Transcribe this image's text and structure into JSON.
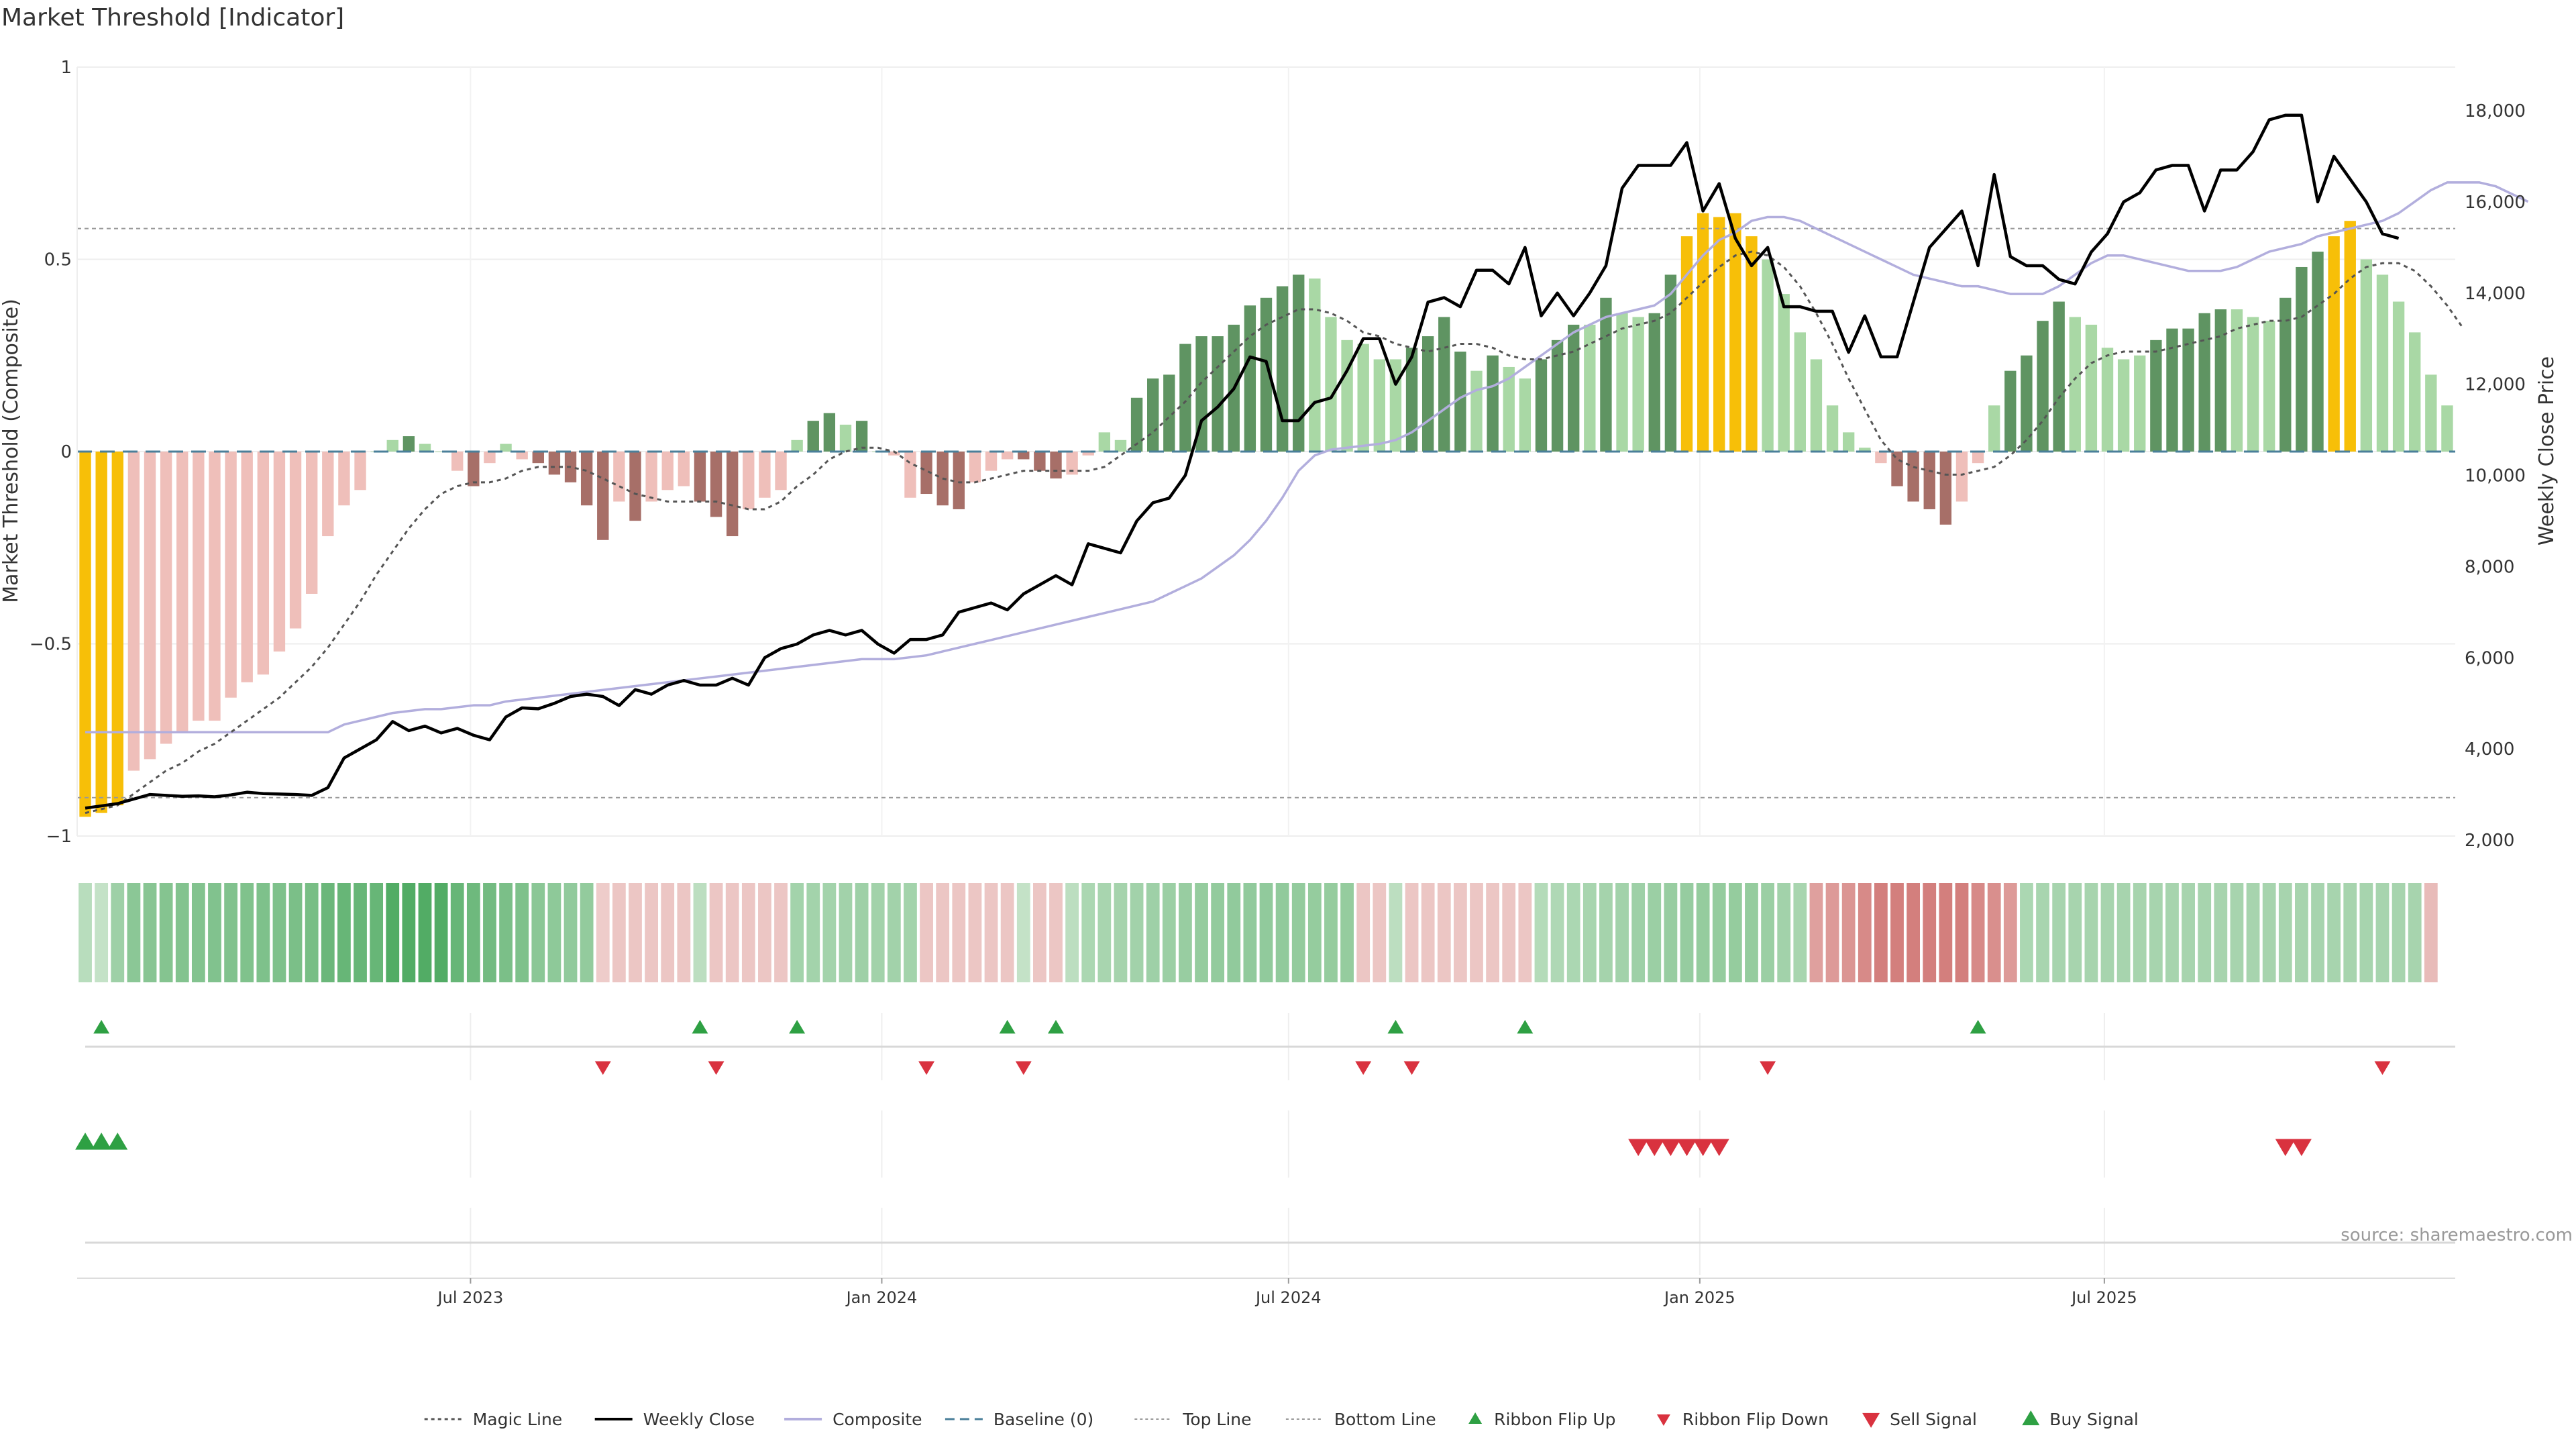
{
  "title": "Market Threshold [Indicator]",
  "source": "source: sharemaestro.com",
  "colors": {
    "gold": "#f7bf08",
    "dark_green": "#5f9462",
    "light_green": "#a9d8a5",
    "dark_red": "#a76f68",
    "light_red": "#efbfba",
    "price_line": "#000000",
    "composite_line": "#b2aedd",
    "magic_line": "#555555",
    "baseline": "#4a7f9a",
    "signal_up": "#2ea043",
    "signal_down": "#d9323f"
  },
  "chart_data": {
    "type": "bar",
    "title": "Market Threshold [Indicator]",
    "ylabel": "Market Threshold (Composite)",
    "y2label": "Weekly Close Price",
    "ylim": [
      -1,
      1
    ],
    "y2lim": [
      2000,
      18500
    ],
    "yticks": [
      -1,
      -0.5,
      0,
      0.5,
      1
    ],
    "yticklabels": [
      "−1",
      "−0.5",
      "0",
      "0.5",
      "1"
    ],
    "y2ticks": [
      2000,
      4000,
      6000,
      8000,
      10000,
      12000,
      14000,
      16000,
      18000
    ],
    "y2ticklabels": [
      "2,000",
      "4,000",
      "6,000",
      "8,000",
      "10,000",
      "12,000",
      "14,000",
      "16,000",
      "18,000"
    ],
    "xlim": [
      "2023-01-06",
      "2025-11-28"
    ],
    "xticks": [
      "2023-07-01",
      "2024-01-01",
      "2024-07-01",
      "2025-01-01",
      "2025-07-01"
    ],
    "xticklabels": [
      "Jul 2023",
      "Jan 2024",
      "Jul 2024",
      "Jan 2025",
      "Jul 2025"
    ],
    "top_line": 0.58,
    "bottom_line": -0.9,
    "grid": true,
    "legend_position": "bottom-center",
    "legend": [
      "Magic Line",
      "Weekly Close",
      "Composite",
      "Baseline (0)",
      "Top Line",
      "Bottom Line",
      "Ribbon Flip Up",
      "Ribbon Flip Down",
      "Sell Signal",
      "Buy Signal"
    ],
    "start_date": "2023-01-06",
    "bars": [
      [
        -0.95,
        "g"
      ],
      [
        -0.94,
        "g"
      ],
      [
        -0.92,
        "g"
      ],
      [
        -0.83,
        "lr"
      ],
      [
        -0.8,
        "lr"
      ],
      [
        -0.76,
        "lr"
      ],
      [
        -0.73,
        "lr"
      ],
      [
        -0.7,
        "lr"
      ],
      [
        -0.7,
        "lr"
      ],
      [
        -0.64,
        "lr"
      ],
      [
        -0.6,
        "lr"
      ],
      [
        -0.58,
        "lr"
      ],
      [
        -0.52,
        "lr"
      ],
      [
        -0.46,
        "lr"
      ],
      [
        -0.37,
        "lr"
      ],
      [
        -0.22,
        "lr"
      ],
      [
        -0.14,
        "lr"
      ],
      [
        -0.1,
        "lr"
      ],
      [
        0.0,
        "lg"
      ],
      [
        0.03,
        "lg"
      ],
      [
        0.04,
        "dg"
      ],
      [
        0.02,
        "lg"
      ],
      [
        0.0,
        "lg"
      ],
      [
        -0.05,
        "lr"
      ],
      [
        -0.09,
        "dr"
      ],
      [
        -0.03,
        "lr"
      ],
      [
        0.02,
        "lg"
      ],
      [
        -0.02,
        "lr"
      ],
      [
        -0.03,
        "dr"
      ],
      [
        -0.06,
        "dr"
      ],
      [
        -0.08,
        "dr"
      ],
      [
        -0.14,
        "dr"
      ],
      [
        -0.23,
        "dr"
      ],
      [
        -0.13,
        "lr"
      ],
      [
        -0.18,
        "dr"
      ],
      [
        -0.13,
        "lr"
      ],
      [
        -0.1,
        "lr"
      ],
      [
        -0.09,
        "lr"
      ],
      [
        -0.13,
        "dr"
      ],
      [
        -0.17,
        "dr"
      ],
      [
        -0.22,
        "dr"
      ],
      [
        -0.15,
        "lr"
      ],
      [
        -0.12,
        "lr"
      ],
      [
        -0.1,
        "lr"
      ],
      [
        0.03,
        "lg"
      ],
      [
        0.08,
        "dg"
      ],
      [
        0.1,
        "dg"
      ],
      [
        0.07,
        "lg"
      ],
      [
        0.08,
        "dg"
      ],
      [
        0.0,
        "lg"
      ],
      [
        -0.01,
        "lr"
      ],
      [
        -0.12,
        "lr"
      ],
      [
        -0.11,
        "dr"
      ],
      [
        -0.14,
        "dr"
      ],
      [
        -0.15,
        "dr"
      ],
      [
        -0.08,
        "lr"
      ],
      [
        -0.05,
        "lr"
      ],
      [
        -0.02,
        "lr"
      ],
      [
        -0.02,
        "dr"
      ],
      [
        -0.05,
        "dr"
      ],
      [
        -0.07,
        "dr"
      ],
      [
        -0.06,
        "lr"
      ],
      [
        -0.01,
        "lr"
      ],
      [
        0.05,
        "lg"
      ],
      [
        0.03,
        "lg"
      ],
      [
        0.14,
        "dg"
      ],
      [
        0.19,
        "dg"
      ],
      [
        0.2,
        "dg"
      ],
      [
        0.28,
        "dg"
      ],
      [
        0.3,
        "dg"
      ],
      [
        0.3,
        "dg"
      ],
      [
        0.33,
        "dg"
      ],
      [
        0.38,
        "dg"
      ],
      [
        0.4,
        "dg"
      ],
      [
        0.43,
        "dg"
      ],
      [
        0.46,
        "dg"
      ],
      [
        0.45,
        "lg"
      ],
      [
        0.35,
        "lg"
      ],
      [
        0.29,
        "lg"
      ],
      [
        0.28,
        "lg"
      ],
      [
        0.24,
        "lg"
      ],
      [
        0.24,
        "lg"
      ],
      [
        0.27,
        "dg"
      ],
      [
        0.3,
        "dg"
      ],
      [
        0.35,
        "dg"
      ],
      [
        0.26,
        "dg"
      ],
      [
        0.21,
        "lg"
      ],
      [
        0.25,
        "dg"
      ],
      [
        0.22,
        "lg"
      ],
      [
        0.19,
        "lg"
      ],
      [
        0.24,
        "dg"
      ],
      [
        0.29,
        "dg"
      ],
      [
        0.33,
        "dg"
      ],
      [
        0.33,
        "lg"
      ],
      [
        0.4,
        "dg"
      ],
      [
        0.36,
        "lg"
      ],
      [
        0.35,
        "lg"
      ],
      [
        0.36,
        "dg"
      ],
      [
        0.46,
        "dg"
      ],
      [
        0.56,
        "g"
      ],
      [
        0.62,
        "g"
      ],
      [
        0.61,
        "g"
      ],
      [
        0.62,
        "g"
      ],
      [
        0.56,
        "g"
      ],
      [
        0.5,
        "lg"
      ],
      [
        0.41,
        "lg"
      ],
      [
        0.31,
        "lg"
      ],
      [
        0.24,
        "lg"
      ],
      [
        0.12,
        "lg"
      ],
      [
        0.05,
        "lg"
      ],
      [
        0.01,
        "lg"
      ],
      [
        -0.03,
        "lr"
      ],
      [
        -0.09,
        "dr"
      ],
      [
        -0.13,
        "dr"
      ],
      [
        -0.15,
        "dr"
      ],
      [
        -0.19,
        "dr"
      ],
      [
        -0.13,
        "lr"
      ],
      [
        -0.03,
        "lr"
      ],
      [
        0.12,
        "lg"
      ],
      [
        0.21,
        "dg"
      ],
      [
        0.25,
        "dg"
      ],
      [
        0.34,
        "dg"
      ],
      [
        0.39,
        "dg"
      ],
      [
        0.35,
        "lg"
      ],
      [
        0.33,
        "lg"
      ],
      [
        0.27,
        "lg"
      ],
      [
        0.24,
        "lg"
      ],
      [
        0.25,
        "lg"
      ],
      [
        0.29,
        "dg"
      ],
      [
        0.32,
        "dg"
      ],
      [
        0.32,
        "dg"
      ],
      [
        0.36,
        "dg"
      ],
      [
        0.37,
        "dg"
      ],
      [
        0.37,
        "lg"
      ],
      [
        0.35,
        "lg"
      ],
      [
        0.34,
        "lg"
      ],
      [
        0.4,
        "dg"
      ],
      [
        0.48,
        "dg"
      ],
      [
        0.52,
        "dg"
      ],
      [
        0.56,
        "g"
      ],
      [
        0.6,
        "g"
      ],
      [
        0.5,
        "lg"
      ],
      [
        0.46,
        "lg"
      ],
      [
        0.39,
        "lg"
      ],
      [
        0.31,
        "lg"
      ],
      [
        0.2,
        "lg"
      ],
      [
        0.12,
        "lg"
      ]
    ],
    "series": [
      {
        "name": "Weekly Close",
        "axis": "right",
        "values": [
          2700,
          2750,
          2800,
          2900,
          3000,
          2980,
          2960,
          2970,
          2950,
          2990,
          3050,
          3020,
          3010,
          3000,
          2980,
          3150,
          3800,
          4000,
          4200,
          4600,
          4400,
          4500,
          4350,
          4450,
          4300,
          4200,
          4700,
          4900,
          4880,
          5000,
          5150,
          5200,
          5150,
          4950,
          5300,
          5200,
          5400,
          5500,
          5400,
          5400,
          5550,
          5400,
          6000,
          6200,
          6300,
          6500,
          6600,
          6500,
          6600,
          6300,
          6100,
          6400,
          6400,
          6500,
          7000,
          7100,
          7200,
          7050,
          7400,
          7600,
          7800,
          7600,
          8500,
          8400,
          8300,
          9000,
          9400,
          9500,
          10000,
          11200,
          11500,
          11900,
          12600,
          12500,
          11200,
          11200,
          11600,
          11700,
          12300,
          13000,
          13000,
          12000,
          12600,
          13800,
          13900,
          13700,
          14500,
          14500,
          14200,
          15000,
          13500,
          14000,
          13500,
          14000,
          14600,
          16300,
          16800,
          16800,
          16800,
          17300,
          15800,
          16400,
          15200,
          14600,
          15000,
          13700,
          13700,
          13600,
          13600,
          12700,
          13500,
          12600,
          12600,
          13800,
          15000,
          15400,
          15800,
          14600,
          16600,
          14800,
          14600,
          14600,
          14300,
          14200,
          14900,
          15300,
          16000,
          16200,
          16700,
          16800,
          16800,
          15800,
          16700,
          16700,
          17100,
          17800,
          17900,
          17900,
          16000,
          17000,
          16500,
          16000,
          15300,
          15200
        ]
      },
      {
        "name": "Composite",
        "axis": "left",
        "values": [
          -0.73,
          -0.73,
          -0.73,
          -0.73,
          -0.73,
          -0.73,
          -0.73,
          -0.73,
          -0.73,
          -0.73,
          -0.73,
          -0.73,
          -0.73,
          -0.73,
          -0.73,
          -0.73,
          -0.71,
          -0.7,
          -0.69,
          -0.68,
          -0.675,
          -0.67,
          -0.67,
          -0.665,
          -0.66,
          -0.66,
          -0.65,
          -0.645,
          -0.64,
          -0.635,
          -0.63,
          -0.625,
          -0.62,
          -0.615,
          -0.61,
          -0.605,
          -0.6,
          -0.595,
          -0.59,
          -0.585,
          -0.58,
          -0.575,
          -0.57,
          -0.565,
          -0.56,
          -0.555,
          -0.55,
          -0.545,
          -0.54,
          -0.54,
          -0.54,
          -0.535,
          -0.53,
          -0.52,
          -0.51,
          -0.5,
          -0.49,
          -0.48,
          -0.47,
          -0.46,
          -0.45,
          -0.44,
          -0.43,
          -0.42,
          -0.41,
          -0.4,
          -0.39,
          -0.37,
          -0.35,
          -0.33,
          -0.3,
          -0.27,
          -0.23,
          -0.18,
          -0.12,
          -0.05,
          -0.01,
          0.005,
          0.01,
          0.015,
          0.02,
          0.03,
          0.05,
          0.08,
          0.11,
          0.14,
          0.16,
          0.17,
          0.19,
          0.22,
          0.25,
          0.28,
          0.31,
          0.33,
          0.35,
          0.36,
          0.37,
          0.38,
          0.41,
          0.46,
          0.51,
          0.55,
          0.57,
          0.6,
          0.61,
          0.61,
          0.6,
          0.58,
          0.56,
          0.54,
          0.52,
          0.5,
          0.48,
          0.46,
          0.45,
          0.44,
          0.43,
          0.43,
          0.42,
          0.41,
          0.41,
          0.41,
          0.43,
          0.46,
          0.49,
          0.51,
          0.51,
          0.5,
          0.49,
          0.48,
          0.47,
          0.47,
          0.47,
          0.48,
          0.5,
          0.52,
          0.53,
          0.54,
          0.56,
          0.57,
          0.58,
          0.59,
          0.6,
          0.62,
          0.65,
          0.68,
          0.7,
          0.7,
          0.7,
          0.69,
          0.67,
          0.65
        ]
      },
      {
        "name": "Magic Line",
        "axis": "left",
        "values": [
          -0.94,
          -0.93,
          -0.92,
          -0.89,
          -0.86,
          -0.83,
          -0.81,
          -0.78,
          -0.76,
          -0.73,
          -0.7,
          -0.67,
          -0.64,
          -0.6,
          -0.56,
          -0.51,
          -0.45,
          -0.39,
          -0.32,
          -0.26,
          -0.2,
          -0.15,
          -0.11,
          -0.09,
          -0.08,
          -0.08,
          -0.07,
          -0.05,
          -0.04,
          -0.04,
          -0.04,
          -0.05,
          -0.07,
          -0.09,
          -0.11,
          -0.12,
          -0.13,
          -0.13,
          -0.13,
          -0.13,
          -0.14,
          -0.15,
          -0.15,
          -0.13,
          -0.09,
          -0.06,
          -0.02,
          0.0,
          0.01,
          0.01,
          0.0,
          -0.03,
          -0.05,
          -0.07,
          -0.08,
          -0.08,
          -0.07,
          -0.06,
          -0.05,
          -0.05,
          -0.05,
          -0.05,
          -0.05,
          -0.04,
          -0.01,
          0.02,
          0.05,
          0.09,
          0.13,
          0.18,
          0.22,
          0.26,
          0.3,
          0.33,
          0.35,
          0.37,
          0.37,
          0.36,
          0.34,
          0.31,
          0.3,
          0.28,
          0.27,
          0.26,
          0.27,
          0.28,
          0.28,
          0.27,
          0.25,
          0.24,
          0.24,
          0.25,
          0.26,
          0.28,
          0.3,
          0.32,
          0.33,
          0.34,
          0.36,
          0.4,
          0.44,
          0.48,
          0.51,
          0.52,
          0.51,
          0.48,
          0.43,
          0.36,
          0.28,
          0.19,
          0.11,
          0.03,
          -0.02,
          -0.04,
          -0.05,
          -0.06,
          -0.06,
          -0.05,
          -0.04,
          -0.01,
          0.03,
          0.08,
          0.14,
          0.19,
          0.23,
          0.25,
          0.26,
          0.26,
          0.26,
          0.27,
          0.28,
          0.29,
          0.3,
          0.32,
          0.33,
          0.34,
          0.34,
          0.35,
          0.38,
          0.41,
          0.45,
          0.48,
          0.49,
          0.49,
          0.47,
          0.43,
          0.38,
          0.32
        ]
      }
    ],
    "ribbon": {
      "values": [
        0.22,
        0.15,
        0.38,
        0.5,
        0.52,
        0.54,
        0.55,
        0.55,
        0.56,
        0.56,
        0.57,
        0.58,
        0.58,
        0.6,
        0.62,
        0.7,
        0.72,
        0.72,
        0.72,
        0.85,
        0.85,
        0.85,
        0.85,
        0.72,
        0.68,
        0.65,
        0.6,
        0.58,
        0.5,
        0.48,
        0.46,
        0.45,
        -0.15,
        -0.2,
        -0.2,
        -0.2,
        -0.2,
        -0.2,
        0.2,
        -0.2,
        -0.2,
        -0.2,
        -0.2,
        -0.2,
        0.35,
        0.35,
        0.35,
        0.36,
        0.38,
        0.36,
        0.36,
        0.35,
        -0.2,
        -0.2,
        -0.2,
        -0.2,
        -0.2,
        -0.2,
        0.15,
        -0.2,
        -0.2,
        0.2,
        0.3,
        0.32,
        0.34,
        0.36,
        0.38,
        0.4,
        0.42,
        0.44,
        0.45,
        0.46,
        0.46,
        0.46,
        0.46,
        0.45,
        0.44,
        0.44,
        0.44,
        -0.2,
        -0.2,
        0.2,
        -0.2,
        -0.2,
        -0.2,
        -0.2,
        -0.2,
        -0.2,
        -0.2,
        -0.2,
        0.25,
        0.28,
        0.3,
        0.32,
        0.34,
        0.36,
        0.38,
        0.4,
        0.42,
        0.43,
        0.44,
        0.44,
        0.44,
        0.44,
        0.4,
        0.36,
        0.32,
        -0.55,
        -0.6,
        -0.65,
        -0.75,
        -0.85,
        -0.85,
        -0.85,
        -0.85,
        -0.85,
        -0.85,
        -0.75,
        -0.7,
        -0.6,
        0.3,
        0.32,
        0.33,
        0.33,
        0.33,
        0.33,
        0.33,
        0.33,
        0.33,
        0.33,
        0.33,
        0.33,
        0.33,
        0.33,
        0.33,
        0.33,
        0.33,
        0.33,
        0.33,
        0.33,
        0.33,
        0.33,
        0.33,
        0.33,
        0.33,
        -0.3
      ]
    },
    "ribbon_flip_up": [
      1,
      38,
      44,
      57,
      60,
      81,
      89,
      117
    ],
    "ribbon_flip_down": [
      32,
      39,
      52,
      58,
      79,
      82,
      104,
      142
    ],
    "buy_signal": [
      0,
      1,
      2
    ],
    "sell_signal": [
      96,
      97,
      98,
      99,
      100,
      101,
      136,
      137
    ]
  }
}
